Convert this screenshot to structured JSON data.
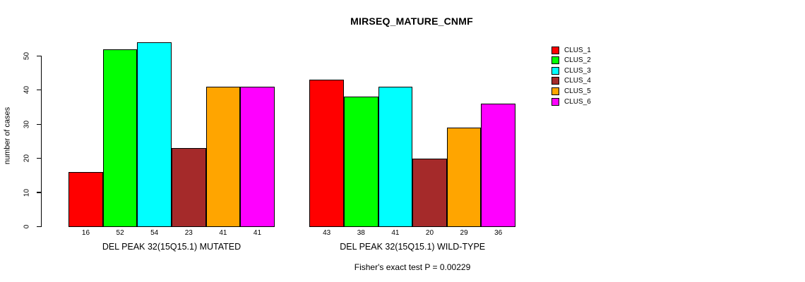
{
  "title": "MIRSEQ_MATURE_CNMF",
  "footer": "Fisher's exact test P = 0.00229",
  "chart_data": {
    "type": "bar",
    "title": "MIRSEQ_MATURE_CNMF",
    "xlabel": "",
    "ylabel": "number of cases",
    "ylim": [
      0,
      55
    ],
    "yticks": [
      0,
      10,
      20,
      30,
      40,
      50
    ],
    "grid": false,
    "legend_position": "right",
    "bar_value_labels_shown": true,
    "categories": [
      "DEL PEAK 32(15Q15.1) MUTATED",
      "DEL PEAK 32(15Q15.1) WILD-TYPE"
    ],
    "series": [
      {
        "name": "CLUS_1",
        "color": "#FF0000",
        "values": [
          16,
          43
        ]
      },
      {
        "name": "CLUS_2",
        "color": "#00FF00",
        "values": [
          52,
          38
        ]
      },
      {
        "name": "CLUS_3",
        "color": "#00FFFF",
        "values": [
          54,
          41
        ]
      },
      {
        "name": "CLUS_4",
        "color": "#A52A2A",
        "values": [
          23,
          20
        ]
      },
      {
        "name": "CLUS_5",
        "color": "#FFA500",
        "values": [
          41,
          29
        ]
      },
      {
        "name": "CLUS_6",
        "color": "#FF00FF",
        "values": [
          41,
          36
        ]
      }
    ],
    "annotation": "Fisher's exact test P = 0.00229"
  }
}
